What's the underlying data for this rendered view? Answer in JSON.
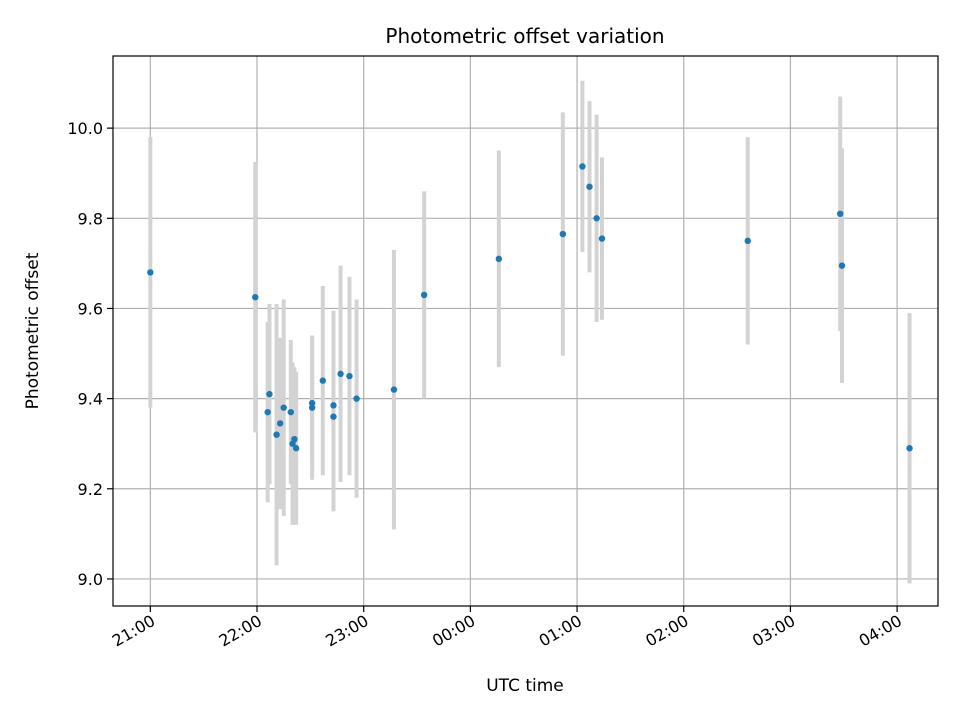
{
  "chart_data": {
    "type": "scatter",
    "title": "Photometric offset variation",
    "xlabel": "UTC time",
    "ylabel": "Photometric offset",
    "x_axis": "time",
    "x_tick_labels": [
      "21:00",
      "22:00",
      "23:00",
      "00:00",
      "01:00",
      "02:00",
      "03:00",
      "04:00"
    ],
    "x_tick_times": [
      "21:00",
      "22:00",
      "23:00",
      "00:00",
      "01:00",
      "02:00",
      "03:00",
      "04:00"
    ],
    "xlim": [
      "20:39",
      "04:23"
    ],
    "y_ticks": [
      "9.0",
      "9.2",
      "9.4",
      "9.6",
      "9.8",
      "10.0"
    ],
    "ylim": [
      8.94,
      10.16
    ],
    "grid": true,
    "marker_color": "#1f77b4",
    "errorbar_color": "#d3d3d3",
    "points": [
      {
        "t": "21:00",
        "y": 9.68,
        "err": 0.3
      },
      {
        "t": "21:59",
        "y": 9.625,
        "err": 0.3
      },
      {
        "t": "22:06",
        "y": 9.37,
        "err": 0.2
      },
      {
        "t": "22:07",
        "y": 9.41,
        "err": 0.2
      },
      {
        "t": "22:11",
        "y": 9.32,
        "err": 0.29
      },
      {
        "t": "22:13",
        "y": 9.345,
        "err": 0.19
      },
      {
        "t": "22:15",
        "y": 9.38,
        "err": 0.24
      },
      {
        "t": "22:19",
        "y": 9.37,
        "err": 0.16
      },
      {
        "t": "22:20",
        "y": 9.3,
        "err": 0.18
      },
      {
        "t": "22:21",
        "y": 9.31,
        "err": 0.16
      },
      {
        "t": "22:22",
        "y": 9.29,
        "err": 0.17
      },
      {
        "t": "22:31",
        "y": 9.39,
        "err": 0.15
      },
      {
        "t": "22:31",
        "y": 9.38,
        "err": 0.16
      },
      {
        "t": "22:37",
        "y": 9.44,
        "err": 0.21
      },
      {
        "t": "22:43",
        "y": 9.36,
        "err": 0.21
      },
      {
        "t": "22:43",
        "y": 9.385,
        "err": 0.21
      },
      {
        "t": "22:47",
        "y": 9.455,
        "err": 0.24
      },
      {
        "t": "22:52",
        "y": 9.45,
        "err": 0.22
      },
      {
        "t": "22:56",
        "y": 9.4,
        "err": 0.22
      },
      {
        "t": "23:17",
        "y": 9.42,
        "err": 0.31
      },
      {
        "t": "23:34",
        "y": 9.63,
        "err": 0.23
      },
      {
        "t": "00:16",
        "y": 9.71,
        "err": 0.24
      },
      {
        "t": "00:52",
        "y": 9.765,
        "err": 0.27
      },
      {
        "t": "01:03",
        "y": 9.915,
        "err": 0.19
      },
      {
        "t": "01:07",
        "y": 9.87,
        "err": 0.19
      },
      {
        "t": "01:11",
        "y": 9.8,
        "err": 0.23
      },
      {
        "t": "01:14",
        "y": 9.755,
        "err": 0.18
      },
      {
        "t": "02:36",
        "y": 9.75,
        "err": 0.23
      },
      {
        "t": "03:28",
        "y": 9.81,
        "err": 0.26
      },
      {
        "t": "03:29",
        "y": 9.695,
        "err": 0.26
      },
      {
        "t": "04:07",
        "y": 9.29,
        "err": 0.3
      }
    ]
  }
}
